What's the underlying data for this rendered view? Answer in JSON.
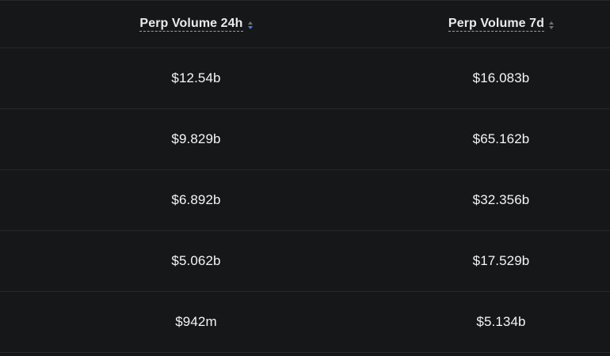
{
  "table": {
    "columns": [
      {
        "label": "Perp Volume 24h",
        "sort_state": "descending",
        "sort_icon": "sort-arrows-icon"
      },
      {
        "label": "Perp Volume 7d",
        "sort_state": "none",
        "sort_icon": "sort-arrows-icon"
      }
    ],
    "rows": [
      {
        "vol_24h": "$12.54b",
        "vol_7d": "$16.083b"
      },
      {
        "vol_24h": "$9.829b",
        "vol_7d": "$65.162b"
      },
      {
        "vol_24h": "$6.892b",
        "vol_7d": "$32.356b"
      },
      {
        "vol_24h": "$5.062b",
        "vol_7d": "$17.529b"
      },
      {
        "vol_24h": "$942m",
        "vol_7d": "$5.134b"
      }
    ]
  },
  "colors": {
    "background": "#161719",
    "divider": "#26282c",
    "active_sort": "#4a7ddb",
    "inactive_sort": "#6b6f76"
  }
}
